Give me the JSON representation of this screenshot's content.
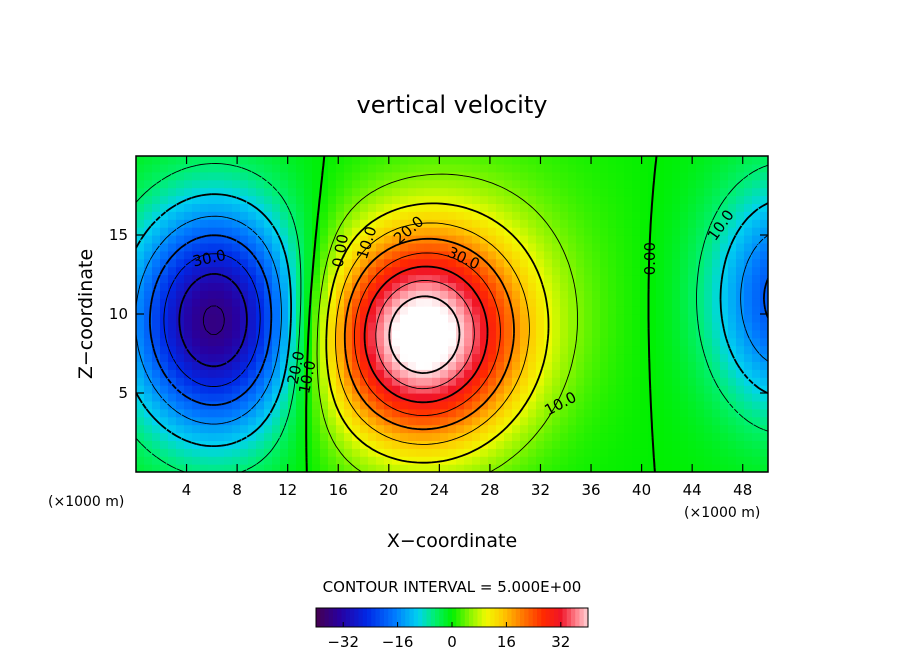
{
  "chart_data": {
    "type": "heatmap",
    "title": "vertical velocity",
    "xlabel": "X−coordinate",
    "ylabel": "Z−coordinate",
    "x_unit": "(×1000 m)",
    "x_unit_right": "(×1000 m)",
    "xlim": [
      0,
      50
    ],
    "ylim": [
      0,
      20
    ],
    "x_ticks": [
      "4",
      "8",
      "12",
      "16",
      "20",
      "24",
      "28",
      "32",
      "36",
      "40",
      "44",
      "48"
    ],
    "y_ticks": [
      "5",
      "10",
      "15"
    ],
    "contour_interval_label": "CONTOUR INTERVAL = 5.000E+00",
    "contour_interval": 5,
    "value_range": [
      -40,
      40
    ],
    "colorbar_ticks": [
      "−32",
      "−16",
      "0",
      "16",
      "32"
    ],
    "contour_labels": [
      {
        "text": "30.0",
        "x": 5.8,
        "z": 13.5,
        "angle": -12
      },
      {
        "text": "20.0",
        "x": 12.7,
        "z": 6.6,
        "angle": -78
      },
      {
        "text": "10.0",
        "x": 13.6,
        "z": 6.0,
        "angle": -78
      },
      {
        "text": "0.00",
        "x": 16.2,
        "z": 14.0,
        "angle": -80
      },
      {
        "text": "10.0",
        "x": 18.3,
        "z": 14.5,
        "angle": -72
      },
      {
        "text": "20.0",
        "x": 21.6,
        "z": 15.3,
        "angle": -40
      },
      {
        "text": "30.0",
        "x": 25.9,
        "z": 13.5,
        "angle": 25
      },
      {
        "text": "10.0",
        "x": 33.6,
        "z": 4.3,
        "angle": -28
      },
      {
        "text": "0.00",
        "x": 40.7,
        "z": 13.5,
        "angle": -90
      },
      {
        "text": "10.0",
        "x": 46.3,
        "z": 15.6,
        "angle": -55
      }
    ]
  }
}
